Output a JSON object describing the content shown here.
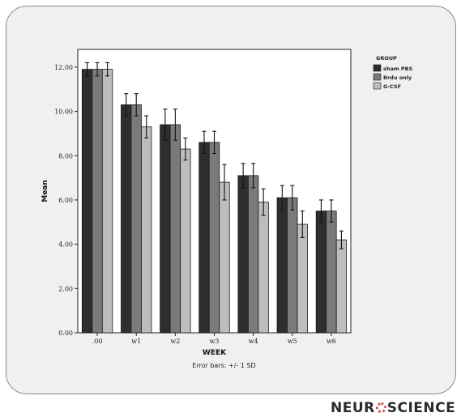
{
  "chart_data": {
    "type": "bar",
    "xlabel": "WEEK",
    "ylabel": "Mean",
    "categories": [
      ".00",
      "w1",
      "w2",
      "w3",
      "w4",
      "w5",
      "w6"
    ],
    "ylim": [
      0,
      12.8
    ],
    "yticks": [
      "0.00",
      "2.00",
      "4.00",
      "6.00",
      "8.00",
      "10.00",
      "12.00"
    ],
    "legend_title": "GROUP",
    "legend_position": "top-right, outside plot",
    "note": "Error bars: +/- 1 SD",
    "grid": false,
    "series": [
      {
        "name": "sham PBS",
        "color": "#2e2e2e",
        "values": [
          11.9,
          10.3,
          9.4,
          8.6,
          7.1,
          6.1,
          5.5
        ],
        "errors": [
          0.3,
          0.5,
          0.7,
          0.5,
          0.55,
          0.55,
          0.5
        ]
      },
      {
        "name": "Brdu only",
        "color": "#7a7a7a",
        "values": [
          11.9,
          10.3,
          9.4,
          8.6,
          7.1,
          6.1,
          5.5
        ],
        "errors": [
          0.3,
          0.5,
          0.7,
          0.5,
          0.55,
          0.55,
          0.5
        ]
      },
      {
        "name": "G-CSF",
        "color": "#bdbdbd",
        "values": [
          11.9,
          9.3,
          8.3,
          6.8,
          5.9,
          4.9,
          4.2
        ],
        "errors": [
          0.3,
          0.5,
          0.5,
          0.8,
          0.6,
          0.6,
          0.4
        ]
      }
    ]
  },
  "branding": {
    "logo_text": "NEUROSCIENCE"
  }
}
